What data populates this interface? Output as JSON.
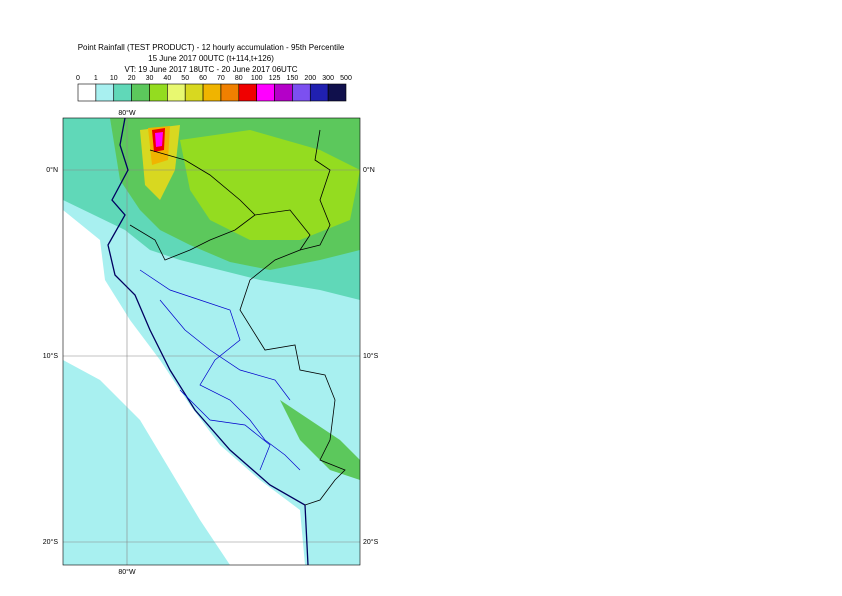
{
  "header": {
    "title": "Point Rainfall (TEST PRODUCT) - 12 hourly accumulation - 95th Percentile",
    "base_time": "15 June 2017 00UTC (t+114,t+126)",
    "valid_time": "VT: 19 June 2017 18UTC - 20 June 2017 06UTC"
  },
  "legend": {
    "labels": [
      "0",
      "1",
      "10",
      "20",
      "30",
      "40",
      "50",
      "60",
      "70",
      "80",
      "100",
      "125",
      "150",
      "200",
      "300",
      "500"
    ],
    "colors": [
      "#ffffff",
      "#a8f0f0",
      "#60d8b8",
      "#5cc85c",
      "#94dc20",
      "#e8f870",
      "#d8d820",
      "#f0b400",
      "#f08000",
      "#f00000",
      "#ff00ff",
      "#b400c8",
      "#7c50f0",
      "#2020b0",
      "#10104c"
    ]
  },
  "map": {
    "lon_labels": [
      "80°W",
      "80°W"
    ],
    "lat_labels": [
      "0°N",
      "0°N",
      "10°S",
      "10°S",
      "20°S",
      "20°S"
    ]
  }
}
